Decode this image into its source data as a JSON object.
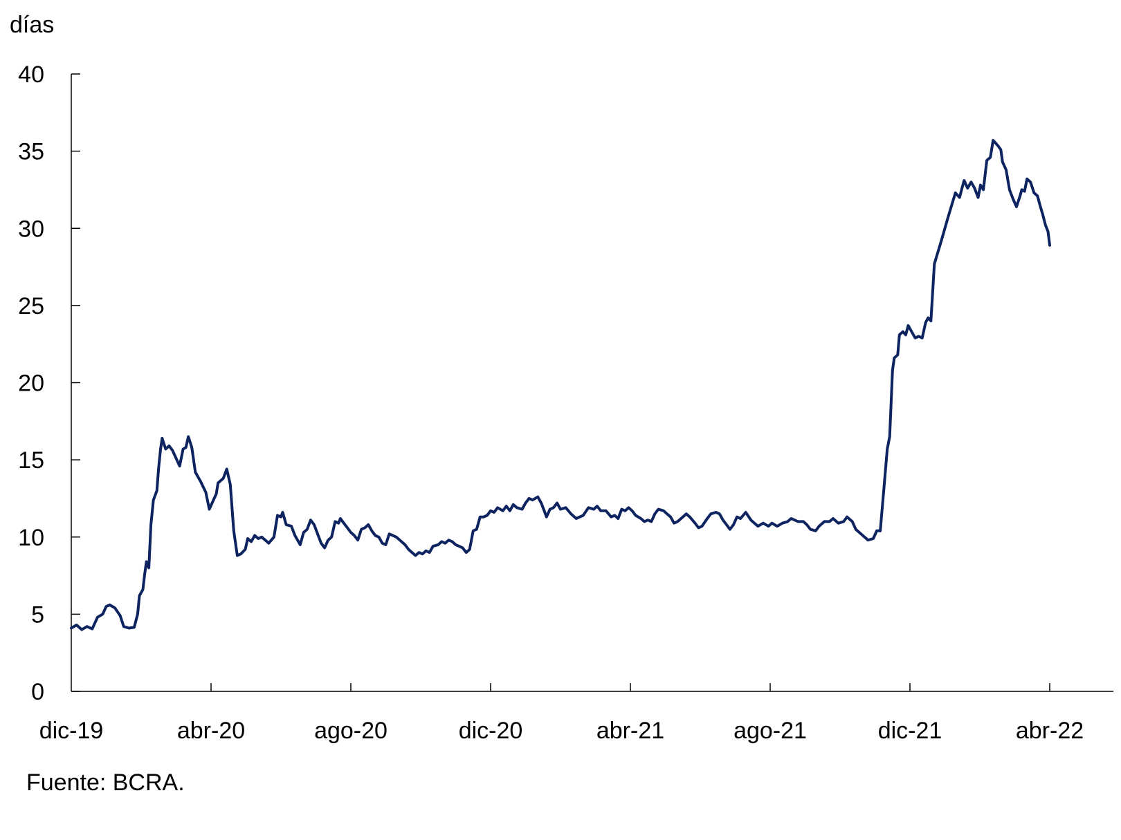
{
  "chart_data": {
    "type": "line",
    "title": "",
    "ylabel": "días",
    "xlabel": "",
    "ylim": [
      0,
      40
    ],
    "y_ticks": [
      0,
      5,
      10,
      15,
      20,
      25,
      30,
      35,
      40
    ],
    "x_tick_labels": [
      "dic-19",
      "abr-20",
      "ago-20",
      "dic-20",
      "abr-21",
      "ago-21",
      "dic-21",
      "abr-22"
    ],
    "grid": false,
    "legend": null,
    "line_color": "#0d2461",
    "series": [
      {
        "name": "días",
        "points_month_offset_value": [
          [
            0.0,
            4.1
          ],
          [
            0.15,
            4.3
          ],
          [
            0.3,
            4.0
          ],
          [
            0.45,
            4.2
          ],
          [
            0.6,
            4.05
          ],
          [
            0.75,
            4.8
          ],
          [
            0.9,
            5.0
          ],
          [
            1.0,
            5.5
          ],
          [
            1.1,
            5.6
          ],
          [
            1.25,
            5.4
          ],
          [
            1.4,
            4.9
          ],
          [
            1.5,
            4.2
          ],
          [
            1.65,
            4.1
          ],
          [
            1.8,
            4.15
          ],
          [
            1.9,
            5.0
          ],
          [
            1.95,
            6.2
          ],
          [
            2.05,
            6.6
          ],
          [
            2.1,
            7.6
          ],
          [
            2.15,
            8.4
          ],
          [
            2.22,
            8.0
          ],
          [
            2.28,
            10.8
          ],
          [
            2.35,
            12.4
          ],
          [
            2.45,
            13.0
          ],
          [
            2.5,
            14.5
          ],
          [
            2.55,
            15.6
          ],
          [
            2.6,
            16.4
          ],
          [
            2.7,
            15.7
          ],
          [
            2.8,
            15.9
          ],
          [
            2.9,
            15.6
          ],
          [
            3.0,
            15.1
          ],
          [
            3.1,
            14.6
          ],
          [
            3.2,
            15.7
          ],
          [
            3.28,
            15.8
          ],
          [
            3.35,
            16.5
          ],
          [
            3.45,
            15.8
          ],
          [
            3.55,
            14.2
          ],
          [
            3.7,
            13.6
          ],
          [
            3.85,
            12.9
          ],
          [
            3.95,
            11.8
          ],
          [
            4.05,
            12.3
          ],
          [
            4.15,
            12.8
          ],
          [
            4.2,
            13.5
          ],
          [
            4.35,
            13.8
          ],
          [
            4.45,
            14.4
          ],
          [
            4.55,
            13.4
          ],
          [
            4.65,
            10.4
          ],
          [
            4.75,
            8.8
          ],
          [
            4.85,
            8.9
          ],
          [
            4.98,
            9.2
          ],
          [
            5.05,
            9.9
          ],
          [
            5.15,
            9.7
          ],
          [
            5.25,
            10.1
          ],
          [
            5.35,
            9.9
          ],
          [
            5.45,
            10.0
          ],
          [
            5.55,
            9.8
          ],
          [
            5.65,
            9.6
          ],
          [
            5.8,
            10.0
          ],
          [
            5.9,
            11.4
          ],
          [
            6.0,
            11.3
          ],
          [
            6.05,
            11.6
          ],
          [
            6.15,
            10.8
          ],
          [
            6.3,
            10.7
          ],
          [
            6.4,
            10.1
          ],
          [
            6.55,
            9.5
          ],
          [
            6.65,
            10.3
          ],
          [
            6.75,
            10.5
          ],
          [
            6.85,
            11.1
          ],
          [
            6.95,
            10.8
          ],
          [
            7.05,
            10.2
          ],
          [
            7.15,
            9.6
          ],
          [
            7.25,
            9.3
          ],
          [
            7.35,
            9.8
          ],
          [
            7.45,
            10.0
          ],
          [
            7.55,
            11.0
          ],
          [
            7.65,
            10.9
          ],
          [
            7.7,
            11.2
          ],
          [
            7.8,
            10.9
          ],
          [
            7.9,
            10.6
          ],
          [
            8.0,
            10.3
          ],
          [
            8.1,
            10.1
          ],
          [
            8.2,
            9.8
          ],
          [
            8.3,
            10.5
          ],
          [
            8.4,
            10.6
          ],
          [
            8.5,
            10.8
          ],
          [
            8.6,
            10.4
          ],
          [
            8.7,
            10.1
          ],
          [
            8.8,
            10.0
          ],
          [
            8.9,
            9.6
          ],
          [
            9.0,
            9.5
          ],
          [
            9.1,
            10.2
          ],
          [
            9.2,
            10.1
          ],
          [
            9.3,
            10.0
          ],
          [
            9.45,
            9.7
          ],
          [
            9.55,
            9.5
          ],
          [
            9.65,
            9.2
          ],
          [
            9.75,
            9.0
          ],
          [
            9.85,
            8.8
          ],
          [
            9.95,
            9.0
          ],
          [
            10.05,
            8.9
          ],
          [
            10.15,
            9.1
          ],
          [
            10.25,
            9.0
          ],
          [
            10.35,
            9.4
          ],
          [
            10.5,
            9.5
          ],
          [
            10.6,
            9.7
          ],
          [
            10.7,
            9.6
          ],
          [
            10.8,
            9.8
          ],
          [
            10.9,
            9.7
          ],
          [
            11.0,
            9.5
          ],
          [
            11.1,
            9.4
          ],
          [
            11.2,
            9.3
          ],
          [
            11.3,
            9.0
          ],
          [
            11.4,
            9.2
          ],
          [
            11.5,
            10.4
          ],
          [
            11.6,
            10.5
          ],
          [
            11.7,
            11.3
          ],
          [
            11.8,
            11.3
          ],
          [
            11.9,
            11.4
          ],
          [
            12.0,
            11.7
          ],
          [
            12.1,
            11.6
          ],
          [
            12.2,
            11.9
          ],
          [
            12.35,
            11.7
          ],
          [
            12.45,
            12.0
          ],
          [
            12.55,
            11.7
          ],
          [
            12.65,
            12.1
          ],
          [
            12.75,
            11.9
          ],
          [
            12.9,
            11.8
          ],
          [
            13.0,
            12.2
          ],
          [
            13.1,
            12.5
          ],
          [
            13.2,
            12.4
          ],
          [
            13.35,
            12.6
          ],
          [
            13.45,
            12.2
          ],
          [
            13.55,
            11.6
          ],
          [
            13.6,
            11.3
          ],
          [
            13.7,
            11.8
          ],
          [
            13.8,
            11.9
          ],
          [
            13.9,
            12.2
          ],
          [
            14.0,
            11.8
          ],
          [
            14.15,
            11.9
          ],
          [
            14.3,
            11.5
          ],
          [
            14.45,
            11.2
          ],
          [
            14.55,
            11.3
          ],
          [
            14.65,
            11.4
          ],
          [
            14.8,
            11.9
          ],
          [
            14.95,
            11.8
          ],
          [
            15.05,
            12.0
          ],
          [
            15.15,
            11.7
          ],
          [
            15.3,
            11.7
          ],
          [
            15.45,
            11.3
          ],
          [
            15.55,
            11.4
          ],
          [
            15.65,
            11.2
          ],
          [
            15.75,
            11.8
          ],
          [
            15.85,
            11.7
          ],
          [
            15.95,
            11.9
          ],
          [
            16.05,
            11.7
          ],
          [
            16.15,
            11.4
          ],
          [
            16.3,
            11.2
          ],
          [
            16.4,
            11.0
          ],
          [
            16.5,
            11.1
          ],
          [
            16.6,
            11.0
          ],
          [
            16.7,
            11.5
          ],
          [
            16.8,
            11.8
          ],
          [
            16.95,
            11.7
          ],
          [
            17.05,
            11.5
          ],
          [
            17.15,
            11.3
          ],
          [
            17.25,
            10.9
          ],
          [
            17.35,
            11.0
          ],
          [
            17.5,
            11.3
          ],
          [
            17.6,
            11.5
          ],
          [
            17.7,
            11.3
          ],
          [
            17.85,
            10.9
          ],
          [
            17.95,
            10.6
          ],
          [
            18.05,
            10.7
          ],
          [
            18.2,
            11.2
          ],
          [
            18.3,
            11.5
          ],
          [
            18.45,
            11.6
          ],
          [
            18.55,
            11.5
          ],
          [
            18.65,
            11.1
          ],
          [
            18.75,
            10.8
          ],
          [
            18.85,
            10.5
          ],
          [
            18.95,
            10.8
          ],
          [
            19.05,
            11.3
          ],
          [
            19.15,
            11.2
          ],
          [
            19.3,
            11.6
          ],
          [
            19.45,
            11.1
          ],
          [
            19.55,
            10.9
          ],
          [
            19.65,
            10.7
          ],
          [
            19.8,
            10.9
          ],
          [
            19.95,
            10.7
          ],
          [
            20.05,
            10.9
          ],
          [
            20.2,
            10.7
          ],
          [
            20.35,
            10.9
          ],
          [
            20.5,
            11.0
          ],
          [
            20.6,
            11.2
          ],
          [
            20.7,
            11.1
          ],
          [
            20.8,
            11.0
          ],
          [
            20.95,
            11.0
          ],
          [
            21.05,
            10.8
          ],
          [
            21.15,
            10.5
          ],
          [
            21.3,
            10.4
          ],
          [
            21.4,
            10.7
          ],
          [
            21.55,
            11.0
          ],
          [
            21.7,
            11.0
          ],
          [
            21.8,
            11.2
          ],
          [
            21.95,
            10.9
          ],
          [
            22.1,
            11.0
          ],
          [
            22.2,
            11.3
          ],
          [
            22.35,
            11.0
          ],
          [
            22.45,
            10.5
          ],
          [
            22.55,
            10.3
          ],
          [
            22.7,
            10.0
          ],
          [
            22.8,
            9.8
          ],
          [
            22.95,
            9.9
          ],
          [
            23.05,
            10.4
          ],
          [
            23.15,
            10.4
          ],
          [
            23.25,
            13.0
          ],
          [
            23.35,
            15.7
          ],
          [
            23.42,
            16.5
          ],
          [
            23.5,
            20.8
          ],
          [
            23.55,
            21.6
          ],
          [
            23.65,
            21.8
          ],
          [
            23.7,
            23.1
          ],
          [
            23.8,
            23.3
          ],
          [
            23.88,
            23.1
          ],
          [
            23.95,
            23.7
          ],
          [
            24.05,
            23.3
          ],
          [
            24.15,
            22.9
          ],
          [
            24.25,
            23.0
          ],
          [
            24.35,
            22.9
          ],
          [
            24.45,
            23.9
          ],
          [
            24.52,
            24.2
          ],
          [
            24.6,
            24.0
          ],
          [
            24.7,
            27.7
          ],
          [
            24.9,
            29.2
          ],
          [
            25.1,
            30.8
          ],
          [
            25.3,
            32.3
          ],
          [
            25.42,
            32.0
          ],
          [
            25.5,
            32.7
          ],
          [
            25.55,
            33.1
          ],
          [
            25.65,
            32.6
          ],
          [
            25.75,
            33.0
          ],
          [
            25.85,
            32.6
          ],
          [
            25.95,
            32.0
          ],
          [
            26.02,
            32.8
          ],
          [
            26.1,
            32.5
          ],
          [
            26.2,
            34.4
          ],
          [
            26.3,
            34.6
          ],
          [
            26.38,
            35.7
          ],
          [
            26.5,
            35.4
          ],
          [
            26.6,
            35.1
          ],
          [
            26.65,
            34.3
          ],
          [
            26.75,
            33.8
          ],
          [
            26.85,
            32.5
          ],
          [
            26.95,
            31.9
          ],
          [
            27.05,
            31.4
          ],
          [
            27.15,
            32.1
          ],
          [
            27.2,
            32.5
          ],
          [
            27.28,
            32.4
          ],
          [
            27.35,
            33.2
          ],
          [
            27.45,
            33.0
          ],
          [
            27.55,
            32.3
          ],
          [
            27.65,
            32.1
          ],
          [
            27.72,
            31.5
          ],
          [
            27.8,
            30.9
          ],
          [
            27.88,
            30.2
          ],
          [
            27.95,
            29.8
          ],
          [
            28.0,
            28.9
          ]
        ]
      }
    ]
  },
  "axes": {
    "y_unit_label": "días",
    "y_ticks": [
      "0",
      "5",
      "10",
      "15",
      "20",
      "25",
      "30",
      "35",
      "40"
    ],
    "x_ticks": [
      "dic-19",
      "abr-20",
      "ago-20",
      "dic-20",
      "abr-21",
      "ago-21",
      "dic-21",
      "abr-22"
    ]
  },
  "footer": {
    "source": "Fuente: BCRA."
  }
}
